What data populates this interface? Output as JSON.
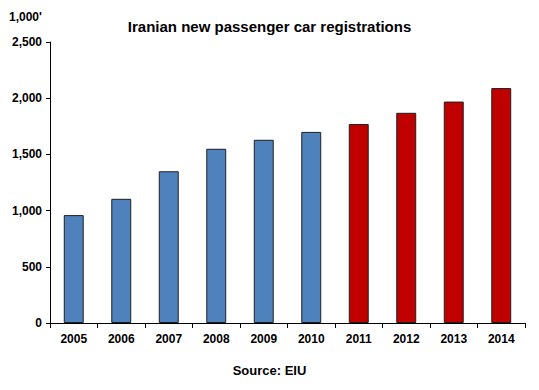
{
  "chart_data": {
    "type": "bar",
    "title": "Iranian new passenger car registrations",
    "ylabel": "1,000'",
    "source": "Source: EIU",
    "categories": [
      "2005",
      "2006",
      "2007",
      "2008",
      "2009",
      "2010",
      "2011",
      "2012",
      "2013",
      "2014"
    ],
    "values": [
      960,
      1105,
      1350,
      1550,
      1630,
      1700,
      1770,
      1870,
      1970,
      2090
    ],
    "colors": [
      "#4f81bd",
      "#4f81bd",
      "#4f81bd",
      "#4f81bd",
      "#4f81bd",
      "#4f81bd",
      "#c00000",
      "#c00000",
      "#c00000",
      "#c00000"
    ],
    "ylim": [
      0,
      2500
    ],
    "yticks": [
      0,
      500,
      {
        "value": 1000,
        "label": "1,000"
      },
      {
        "value": 1500,
        "label": "1,500"
      },
      {
        "value": 2000,
        "label": "2,000"
      },
      {
        "value": 2500,
        "label": "2,500"
      }
    ],
    "grid": false
  }
}
